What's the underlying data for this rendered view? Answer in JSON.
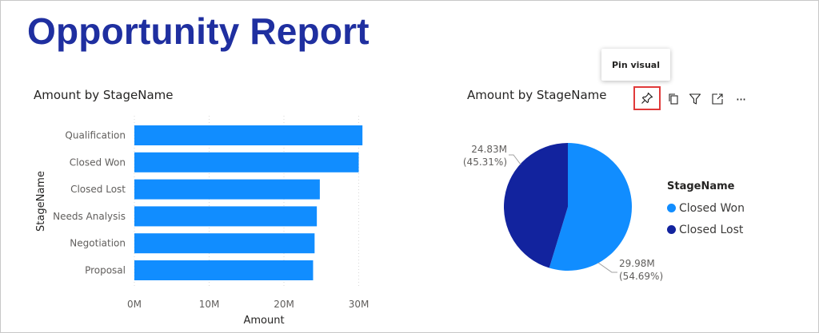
{
  "report": {
    "title": "Opportunity Report"
  },
  "tooltip": {
    "text": "Pin visual"
  },
  "toolbar": {
    "icons": [
      "pin-icon",
      "copy-icon",
      "filter-icon",
      "focus-mode-icon",
      "more-options-icon"
    ],
    "more_label": "···"
  },
  "colors": {
    "light_blue": "#118dff",
    "dark_blue": "#12239e",
    "title": "#1f2fa0",
    "highlight": "#e03a3a"
  },
  "bar_visual": {
    "title": "Amount by StageName",
    "chart_data": {
      "type": "bar",
      "orientation": "horizontal",
      "categories": [
        "Qualification",
        "Closed Won",
        "Closed Lost",
        "Needs Analysis",
        "Negotiation",
        "Proposal"
      ],
      "values": [
        30.5,
        30.0,
        24.8,
        24.4,
        24.1,
        23.9
      ],
      "unit": "M",
      "xlabel": "Amount",
      "ylabel": "StageName",
      "xlim": [
        0,
        30
      ],
      "xticks": [
        "0M",
        "10M",
        "20M",
        "30M"
      ],
      "grid": "vertical dotted"
    }
  },
  "pie_visual": {
    "title": "Amount by StageName",
    "chart_data": {
      "type": "pie",
      "slices": [
        {
          "label": "Closed Won",
          "value": 29.98,
          "value_label": "29.98M",
          "percent_label": "(54.69%)"
        },
        {
          "label": "Closed Lost",
          "value": 24.83,
          "value_label": "24.83M",
          "percent_label": "(45.31%)"
        }
      ],
      "legend_title": "StageName",
      "legend_position": "right"
    }
  }
}
